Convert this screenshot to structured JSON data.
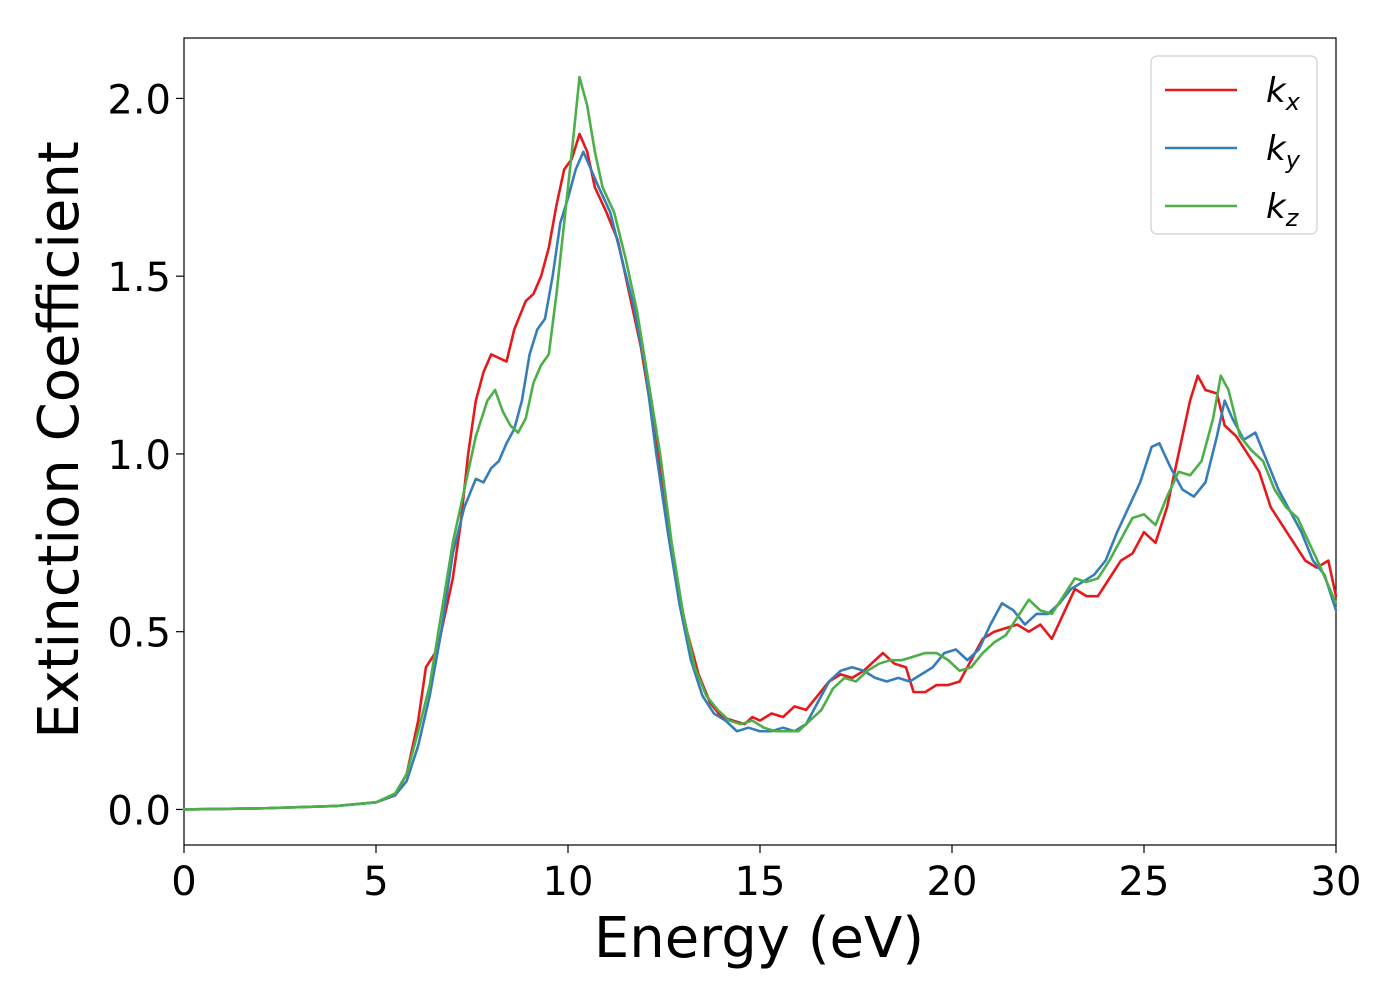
{
  "chart_data": {
    "type": "line",
    "title": "",
    "xlabel": "Energy (eV)",
    "ylabel": "Extinction Coefficient",
    "xlim": [
      0,
      30
    ],
    "ylim": [
      -0.1,
      2.17
    ],
    "x_ticks": [
      0,
      5,
      10,
      15,
      20,
      25,
      30
    ],
    "y_ticks": [
      0.0,
      0.5,
      1.0,
      1.5,
      2.0
    ],
    "x_tick_labels": [
      "0",
      "5",
      "10",
      "15",
      "20",
      "25",
      "30"
    ],
    "y_tick_labels": [
      "0.0",
      "0.5",
      "1.0",
      "1.5",
      "2.0"
    ],
    "grid": false,
    "legend": {
      "placement": "top-right",
      "entries": [
        {
          "base": "k",
          "sub": "x",
          "color": "#e41a1c"
        },
        {
          "base": "k",
          "sub": "y",
          "color": "#377eb8"
        },
        {
          "base": "k",
          "sub": "z",
          "color": "#4daf4a"
        }
      ]
    },
    "series": [
      {
        "color": "#e41a1c",
        "points": [
          [
            0,
            0.0
          ],
          [
            2,
            0.003
          ],
          [
            4,
            0.01
          ],
          [
            5,
            0.02
          ],
          [
            5.5,
            0.04
          ],
          [
            5.8,
            0.1
          ],
          [
            6.1,
            0.25
          ],
          [
            6.3,
            0.4
          ],
          [
            6.6,
            0.45
          ],
          [
            6.8,
            0.55
          ],
          [
            7.0,
            0.65
          ],
          [
            7.2,
            0.8
          ],
          [
            7.4,
            1.0
          ],
          [
            7.6,
            1.15
          ],
          [
            7.8,
            1.23
          ],
          [
            8.0,
            1.28
          ],
          [
            8.2,
            1.27
          ],
          [
            8.4,
            1.26
          ],
          [
            8.6,
            1.35
          ],
          [
            8.9,
            1.43
          ],
          [
            9.1,
            1.45
          ],
          [
            9.3,
            1.5
          ],
          [
            9.5,
            1.58
          ],
          [
            9.7,
            1.7
          ],
          [
            9.9,
            1.8
          ],
          [
            10.1,
            1.83
          ],
          [
            10.3,
            1.9
          ],
          [
            10.5,
            1.85
          ],
          [
            10.7,
            1.75
          ],
          [
            11.0,
            1.68
          ],
          [
            11.3,
            1.6
          ],
          [
            11.6,
            1.45
          ],
          [
            11.9,
            1.3
          ],
          [
            12.2,
            1.1
          ],
          [
            12.5,
            0.9
          ],
          [
            12.8,
            0.65
          ],
          [
            13.1,
            0.5
          ],
          [
            13.4,
            0.38
          ],
          [
            13.7,
            0.3
          ],
          [
            14.0,
            0.26
          ],
          [
            14.3,
            0.25
          ],
          [
            14.6,
            0.24
          ],
          [
            14.8,
            0.26
          ],
          [
            15.0,
            0.25
          ],
          [
            15.3,
            0.27
          ],
          [
            15.6,
            0.26
          ],
          [
            15.9,
            0.29
          ],
          [
            16.2,
            0.28
          ],
          [
            16.5,
            0.32
          ],
          [
            16.8,
            0.36
          ],
          [
            17.1,
            0.38
          ],
          [
            17.4,
            0.37
          ],
          [
            17.7,
            0.39
          ],
          [
            18.0,
            0.42
          ],
          [
            18.2,
            0.44
          ],
          [
            18.5,
            0.41
          ],
          [
            18.8,
            0.4
          ],
          [
            19.0,
            0.33
          ],
          [
            19.3,
            0.33
          ],
          [
            19.6,
            0.35
          ],
          [
            19.9,
            0.35
          ],
          [
            20.2,
            0.36
          ],
          [
            20.5,
            0.42
          ],
          [
            20.8,
            0.48
          ],
          [
            21.1,
            0.5
          ],
          [
            21.4,
            0.51
          ],
          [
            21.7,
            0.52
          ],
          [
            22.0,
            0.5
          ],
          [
            22.3,
            0.52
          ],
          [
            22.6,
            0.48
          ],
          [
            22.9,
            0.55
          ],
          [
            23.2,
            0.62
          ],
          [
            23.5,
            0.6
          ],
          [
            23.8,
            0.6
          ],
          [
            24.1,
            0.65
          ],
          [
            24.4,
            0.7
          ],
          [
            24.7,
            0.72
          ],
          [
            25.0,
            0.78
          ],
          [
            25.3,
            0.75
          ],
          [
            25.6,
            0.85
          ],
          [
            25.9,
            1.0
          ],
          [
            26.2,
            1.15
          ],
          [
            26.4,
            1.22
          ],
          [
            26.6,
            1.18
          ],
          [
            26.9,
            1.17
          ],
          [
            27.1,
            1.08
          ],
          [
            27.4,
            1.05
          ],
          [
            27.7,
            1.0
          ],
          [
            28.0,
            0.95
          ],
          [
            28.3,
            0.85
          ],
          [
            28.6,
            0.8
          ],
          [
            28.9,
            0.75
          ],
          [
            29.2,
            0.7
          ],
          [
            29.5,
            0.68
          ],
          [
            29.8,
            0.7
          ],
          [
            30.0,
            0.6
          ]
        ]
      },
      {
        "color": "#377eb8",
        "points": [
          [
            0,
            0.0
          ],
          [
            2,
            0.003
          ],
          [
            4,
            0.01
          ],
          [
            5,
            0.02
          ],
          [
            5.5,
            0.04
          ],
          [
            5.8,
            0.08
          ],
          [
            6.1,
            0.18
          ],
          [
            6.4,
            0.32
          ],
          [
            6.7,
            0.5
          ],
          [
            7.0,
            0.72
          ],
          [
            7.3,
            0.85
          ],
          [
            7.6,
            0.93
          ],
          [
            7.8,
            0.92
          ],
          [
            8.0,
            0.96
          ],
          [
            8.2,
            0.98
          ],
          [
            8.4,
            1.03
          ],
          [
            8.6,
            1.07
          ],
          [
            8.8,
            1.15
          ],
          [
            9.0,
            1.28
          ],
          [
            9.2,
            1.35
          ],
          [
            9.4,
            1.38
          ],
          [
            9.6,
            1.5
          ],
          [
            9.8,
            1.65
          ],
          [
            10.0,
            1.72
          ],
          [
            10.2,
            1.8
          ],
          [
            10.4,
            1.85
          ],
          [
            10.6,
            1.8
          ],
          [
            10.8,
            1.75
          ],
          [
            11.1,
            1.68
          ],
          [
            11.4,
            1.55
          ],
          [
            11.7,
            1.42
          ],
          [
            12.0,
            1.25
          ],
          [
            12.3,
            1.0
          ],
          [
            12.6,
            0.78
          ],
          [
            12.9,
            0.58
          ],
          [
            13.2,
            0.42
          ],
          [
            13.5,
            0.32
          ],
          [
            13.8,
            0.27
          ],
          [
            14.1,
            0.25
          ],
          [
            14.4,
            0.22
          ],
          [
            14.7,
            0.23
          ],
          [
            15.0,
            0.22
          ],
          [
            15.3,
            0.22
          ],
          [
            15.6,
            0.23
          ],
          [
            15.9,
            0.22
          ],
          [
            16.2,
            0.24
          ],
          [
            16.5,
            0.3
          ],
          [
            16.8,
            0.36
          ],
          [
            17.1,
            0.39
          ],
          [
            17.4,
            0.4
          ],
          [
            17.7,
            0.39
          ],
          [
            18.0,
            0.37
          ],
          [
            18.3,
            0.36
          ],
          [
            18.6,
            0.37
          ],
          [
            18.9,
            0.36
          ],
          [
            19.2,
            0.38
          ],
          [
            19.5,
            0.4
          ],
          [
            19.8,
            0.44
          ],
          [
            20.1,
            0.45
          ],
          [
            20.4,
            0.42
          ],
          [
            20.7,
            0.45
          ],
          [
            21.0,
            0.52
          ],
          [
            21.3,
            0.58
          ],
          [
            21.6,
            0.56
          ],
          [
            21.9,
            0.52
          ],
          [
            22.2,
            0.55
          ],
          [
            22.5,
            0.55
          ],
          [
            22.8,
            0.58
          ],
          [
            23.1,
            0.62
          ],
          [
            23.4,
            0.64
          ],
          [
            23.7,
            0.66
          ],
          [
            24.0,
            0.7
          ],
          [
            24.3,
            0.78
          ],
          [
            24.6,
            0.85
          ],
          [
            24.9,
            0.92
          ],
          [
            25.2,
            1.02
          ],
          [
            25.4,
            1.03
          ],
          [
            25.7,
            0.96
          ],
          [
            26.0,
            0.9
          ],
          [
            26.3,
            0.88
          ],
          [
            26.6,
            0.92
          ],
          [
            26.9,
            1.05
          ],
          [
            27.1,
            1.15
          ],
          [
            27.3,
            1.1
          ],
          [
            27.6,
            1.04
          ],
          [
            27.9,
            1.06
          ],
          [
            28.2,
            0.98
          ],
          [
            28.5,
            0.9
          ],
          [
            28.8,
            0.84
          ],
          [
            29.1,
            0.78
          ],
          [
            29.4,
            0.7
          ],
          [
            29.7,
            0.66
          ],
          [
            30.0,
            0.56
          ]
        ]
      },
      {
        "color": "#4daf4a",
        "points": [
          [
            0,
            0.0
          ],
          [
            2,
            0.003
          ],
          [
            4,
            0.01
          ],
          [
            5,
            0.02
          ],
          [
            5.5,
            0.045
          ],
          [
            5.8,
            0.1
          ],
          [
            6.1,
            0.22
          ],
          [
            6.4,
            0.35
          ],
          [
            6.7,
            0.55
          ],
          [
            7.0,
            0.75
          ],
          [
            7.3,
            0.9
          ],
          [
            7.6,
            1.05
          ],
          [
            7.9,
            1.15
          ],
          [
            8.1,
            1.18
          ],
          [
            8.3,
            1.12
          ],
          [
            8.5,
            1.08
          ],
          [
            8.7,
            1.06
          ],
          [
            8.9,
            1.1
          ],
          [
            9.1,
            1.2
          ],
          [
            9.3,
            1.25
          ],
          [
            9.5,
            1.28
          ],
          [
            9.7,
            1.45
          ],
          [
            9.9,
            1.65
          ],
          [
            10.1,
            1.85
          ],
          [
            10.3,
            2.06
          ],
          [
            10.5,
            1.98
          ],
          [
            10.7,
            1.85
          ],
          [
            10.9,
            1.75
          ],
          [
            11.2,
            1.68
          ],
          [
            11.5,
            1.55
          ],
          [
            11.8,
            1.4
          ],
          [
            12.1,
            1.2
          ],
          [
            12.4,
            1.0
          ],
          [
            12.7,
            0.75
          ],
          [
            13.0,
            0.55
          ],
          [
            13.3,
            0.4
          ],
          [
            13.6,
            0.32
          ],
          [
            13.9,
            0.28
          ],
          [
            14.2,
            0.25
          ],
          [
            14.5,
            0.24
          ],
          [
            14.8,
            0.25
          ],
          [
            15.1,
            0.23
          ],
          [
            15.4,
            0.22
          ],
          [
            15.7,
            0.22
          ],
          [
            16.0,
            0.22
          ],
          [
            16.3,
            0.25
          ],
          [
            16.6,
            0.28
          ],
          [
            16.9,
            0.34
          ],
          [
            17.2,
            0.37
          ],
          [
            17.5,
            0.36
          ],
          [
            17.8,
            0.39
          ],
          [
            18.1,
            0.41
          ],
          [
            18.4,
            0.42
          ],
          [
            18.7,
            0.42
          ],
          [
            19.0,
            0.43
          ],
          [
            19.3,
            0.44
          ],
          [
            19.6,
            0.44
          ],
          [
            19.9,
            0.42
          ],
          [
            20.2,
            0.39
          ],
          [
            20.5,
            0.4
          ],
          [
            20.8,
            0.44
          ],
          [
            21.1,
            0.47
          ],
          [
            21.4,
            0.49
          ],
          [
            21.7,
            0.54
          ],
          [
            22.0,
            0.59
          ],
          [
            22.3,
            0.56
          ],
          [
            22.6,
            0.55
          ],
          [
            22.9,
            0.6
          ],
          [
            23.2,
            0.65
          ],
          [
            23.5,
            0.64
          ],
          [
            23.8,
            0.65
          ],
          [
            24.1,
            0.7
          ],
          [
            24.4,
            0.76
          ],
          [
            24.7,
            0.82
          ],
          [
            25.0,
            0.83
          ],
          [
            25.3,
            0.8
          ],
          [
            25.6,
            0.88
          ],
          [
            25.9,
            0.95
          ],
          [
            26.2,
            0.94
          ],
          [
            26.5,
            0.98
          ],
          [
            26.8,
            1.1
          ],
          [
            27.0,
            1.22
          ],
          [
            27.2,
            1.18
          ],
          [
            27.5,
            1.05
          ],
          [
            27.8,
            1.01
          ],
          [
            28.1,
            0.98
          ],
          [
            28.4,
            0.9
          ],
          [
            28.7,
            0.85
          ],
          [
            29.0,
            0.82
          ],
          [
            29.3,
            0.75
          ],
          [
            29.6,
            0.68
          ],
          [
            30.0,
            0.58
          ]
        ]
      }
    ]
  }
}
